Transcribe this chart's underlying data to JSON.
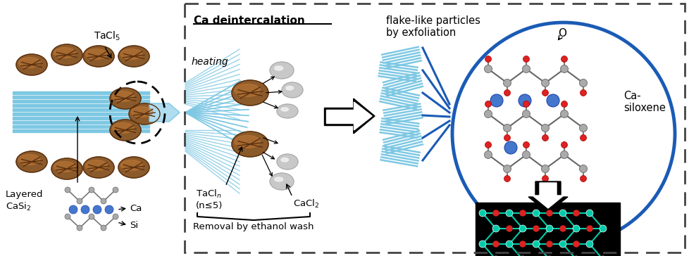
{
  "bg_color": "#ffffff",
  "dashed_box_color": "#444444",
  "blue_circle_color": "#1a5bb5",
  "tacl5_label": "TaCl$_5$",
  "tacln_label": "TaCl$_n$\n(n≤5)",
  "cacl2_label": "CaCl$_2$",
  "heating_label": "heating",
  "layered_label": "Layered\nCaSi$_2$",
  "ca_label": "Ca",
  "si_label": "Si",
  "ca_deintercalation_label": "Ca deintercalation",
  "flake_label": "flake-like particles\nby exfoliation",
  "removal_label": "Removal by ethanol wash",
  "ca_siloxene_label": "Ca-\nsiloxene",
  "o_label": "O",
  "blue_stripe_color": "#7ec8e3",
  "dark_blue_color": "#1a5bb5",
  "brown_dark": "#5a3010",
  "brown_mid": "#8B5A2B",
  "brown_light": "#c47a35",
  "gray_ellipse_color": "#c8c8c8",
  "ca_blue_color": "#4477cc",
  "si_gray_color": "#999999",
  "cyan_network": "#00ccaa",
  "red_o": "#dd2222"
}
